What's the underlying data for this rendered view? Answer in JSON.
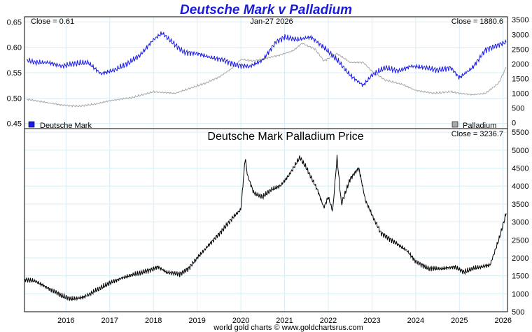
{
  "title": "Deutsche Mark v Palladium",
  "footer": "world gold charts © www.goldchartsrus.com",
  "colors": {
    "title": "#1a1adc",
    "dm_line": "#1a1ae6",
    "palladium_line": "#a8a8a8",
    "price_line": "#000000",
    "grid": "#d6eef4",
    "border": "#000000"
  },
  "chart_data": [
    {
      "type": "line",
      "title": "",
      "header_left": "Close = 0.61",
      "header_center": "Jan-27  2026",
      "header_right": "Close = 1880.6",
      "y_left": {
        "ylim": [
          0.44,
          0.66
        ],
        "ticks": [
          "0.45",
          "0.50",
          "0.55",
          "0.60",
          "0.65"
        ]
      },
      "y_right": {
        "ylim": [
          -200,
          3600
        ],
        "ticks": [
          "0",
          "500",
          "1000",
          "1500",
          "2000",
          "2500",
          "3000",
          "3500"
        ]
      },
      "grid": true,
      "legend": [
        {
          "name": "Deutsche Mark",
          "position": "bottom-left"
        },
        {
          "name": "Palladium",
          "position": "bottom-right"
        }
      ],
      "series": [
        {
          "name": "Deutsche Mark",
          "axis": "left",
          "x": [
            2015.1,
            2015.3,
            2015.6,
            2015.9,
            2016.2,
            2016.5,
            2016.8,
            2017.1,
            2017.4,
            2017.7,
            2018.0,
            2018.2,
            2018.4,
            2018.7,
            2019.0,
            2019.3,
            2019.6,
            2019.9,
            2020.2,
            2020.5,
            2020.8,
            2021.0,
            2021.3,
            2021.6,
            2021.9,
            2022.2,
            2022.5,
            2022.8,
            2023.0,
            2023.3,
            2023.6,
            2023.9,
            2024.2,
            2024.5,
            2024.8,
            2025.0,
            2025.3,
            2025.6,
            2025.9,
            2026.07
          ],
          "values": [
            0.575,
            0.57,
            0.57,
            0.563,
            0.568,
            0.57,
            0.548,
            0.555,
            0.567,
            0.585,
            0.615,
            0.628,
            0.612,
            0.59,
            0.588,
            0.58,
            0.575,
            0.565,
            0.562,
            0.575,
            0.61,
            0.62,
            0.615,
            0.62,
            0.6,
            0.575,
            0.545,
            0.525,
            0.545,
            0.56,
            0.553,
            0.563,
            0.56,
            0.555,
            0.56,
            0.54,
            0.56,
            0.595,
            0.605,
            0.61
          ]
        },
        {
          "name": "Palladium",
          "axis": "right",
          "x": [
            2015.1,
            2015.5,
            2015.9,
            2016.3,
            2016.7,
            2017.0,
            2017.5,
            2018.0,
            2018.5,
            2018.9,
            2019.2,
            2019.5,
            2019.8,
            2020.0,
            2020.3,
            2020.6,
            2020.9,
            2021.2,
            2021.4,
            2021.7,
            2021.9,
            2022.2,
            2022.5,
            2022.8,
            2023.0,
            2023.3,
            2023.7,
            2024.0,
            2024.4,
            2024.8,
            2025.0,
            2025.3,
            2025.6,
            2025.9,
            2026.07
          ],
          "values": [
            800,
            700,
            600,
            560,
            640,
            750,
            850,
            1050,
            1000,
            1200,
            1350,
            1550,
            1850,
            2150,
            2100,
            2200,
            2300,
            2450,
            2700,
            2500,
            2100,
            2350,
            2050,
            2050,
            1750,
            1450,
            1300,
            1100,
            1000,
            1050,
            1000,
            950,
            1000,
            1350,
            1880.6
          ]
        }
      ]
    },
    {
      "type": "line",
      "title": "Deutsche Mark Palladium Price",
      "header_right": "Close = 3236.7",
      "x_ticks": [
        "2016",
        "2017",
        "2018",
        "2019",
        "2020",
        "2021",
        "2022",
        "2023",
        "2024",
        "2025",
        "2026"
      ],
      "xlim": [
        2015.05,
        2026.1
      ],
      "ylim": [
        500,
        5600
      ],
      "y_ticks": [
        "500",
        "1000",
        "1500",
        "2000",
        "2500",
        "3000",
        "3500",
        "4000",
        "4500",
        "5000",
        "5500"
      ],
      "grid": true,
      "series": [
        {
          "x": [
            2015.05,
            2015.3,
            2015.6,
            2015.9,
            2016.1,
            2016.4,
            2016.7,
            2017.0,
            2017.3,
            2017.6,
            2017.9,
            2018.1,
            2018.3,
            2018.6,
            2018.8,
            2019.0,
            2019.3,
            2019.6,
            2019.8,
            2020.0,
            2020.1,
            2020.15,
            2020.3,
            2020.5,
            2020.7,
            2020.9,
            2021.1,
            2021.35,
            2021.5,
            2021.75,
            2021.9,
            2022.0,
            2022.1,
            2022.2,
            2022.3,
            2022.5,
            2022.7,
            2022.85,
            2023.0,
            2023.2,
            2023.5,
            2023.8,
            2024.0,
            2024.3,
            2024.6,
            2024.9,
            2025.1,
            2025.3,
            2025.5,
            2025.7,
            2025.9,
            2026.07
          ],
          "values": [
            1400,
            1350,
            1150,
            950,
            850,
            900,
            1100,
            1300,
            1450,
            1550,
            1650,
            1750,
            1600,
            1550,
            1700,
            2000,
            2400,
            2800,
            3100,
            3350,
            4800,
            4300,
            3800,
            3700,
            3900,
            4000,
            4300,
            4800,
            4500,
            3900,
            3400,
            3700,
            3300,
            4800,
            3500,
            4200,
            4500,
            3600,
            3200,
            2700,
            2450,
            2200,
            1900,
            1700,
            1700,
            1750,
            1600,
            1700,
            1750,
            1800,
            2500,
            3236.7
          ]
        }
      ]
    }
  ]
}
